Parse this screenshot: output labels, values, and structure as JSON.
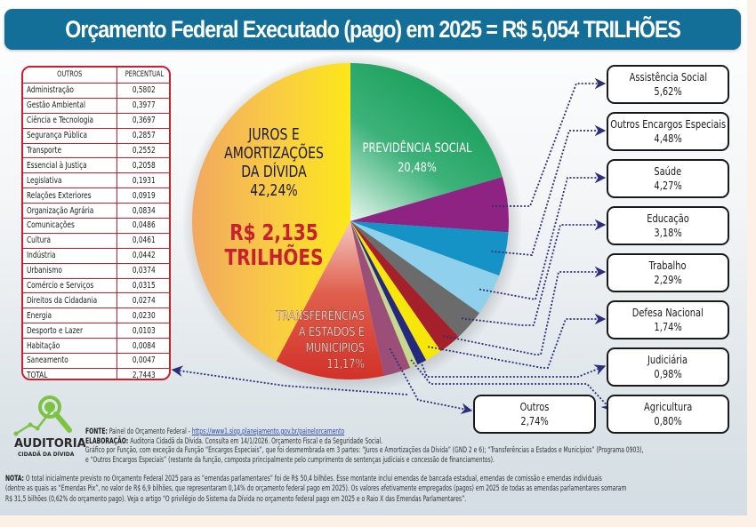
{
  "header": {
    "title": "Orçamento Federal Executado (pago) em 2025 = R$ 5,054 TRILHÕES"
  },
  "outros_table": {
    "headers": [
      "OUTROS",
      "PERCENTUAL"
    ],
    "rows": [
      {
        "label": "Administração",
        "value": "0,5802"
      },
      {
        "label": "Gestão Ambiental",
        "value": "0,3977"
      },
      {
        "label": "Ciência e Tecnologia",
        "value": "0,3697"
      },
      {
        "label": "Segurança Pública",
        "value": "0,2857"
      },
      {
        "label": "Transporte",
        "value": "0,2552"
      },
      {
        "label": "Essencial à Justiça",
        "value": "0,2058"
      },
      {
        "label": "Legislativa",
        "value": "0,1931"
      },
      {
        "label": "Relações Exteriores",
        "value": "0,0919"
      },
      {
        "label": "Organização Agrária",
        "value": "0,0834"
      },
      {
        "label": "Comunicações",
        "value": "0,0486"
      },
      {
        "label": "Cultura",
        "value": "0,0461"
      },
      {
        "label": "Indústria",
        "value": "0,0442"
      },
      {
        "label": "Urbanismo",
        "value": "0,0374"
      },
      {
        "label": "Comércio e Serviços",
        "value": "0,0315"
      },
      {
        "label": "Direitos da Cidadania",
        "value": "0,0274"
      },
      {
        "label": "Energia",
        "value": "0,0230"
      },
      {
        "label": "Desporto e Lazer",
        "value": "0,0103"
      },
      {
        "label": "Habitação",
        "value": "0,0084"
      },
      {
        "label": "Saneamento",
        "value": "0,0047"
      }
    ],
    "total": {
      "label": "TOTAL",
      "value": "2,7443"
    }
  },
  "chart_data": {
    "type": "pie",
    "title": "Orçamento Federal Executado (pago) em 2025 = R$ 5,054 TRILHÕES",
    "unit": "%",
    "start": "12 o'clock, clockwise",
    "slices": [
      {
        "name": "Previdência Social",
        "label": "PREVIDÊNCIA SOCIAL",
        "value": 20.48,
        "display": "20,48%",
        "color": "#13a05a",
        "label_inside": true
      },
      {
        "name": "Assistência Social",
        "label": "Assistência Social",
        "value": 5.62,
        "display": "5,62%",
        "color": "#8e2384"
      },
      {
        "name": "Outros Encargos Especiais",
        "label": "Outros Encargos Especiais",
        "value": 4.48,
        "display": "4,48%",
        "color": "#1592c6"
      },
      {
        "name": "Saúde",
        "label": "Saúde",
        "value": 4.27,
        "display": "4,27%",
        "color": "#8fd0ec"
      },
      {
        "name": "Educação",
        "label": "Educação",
        "value": 3.18,
        "display": "3,18%",
        "color": "#6b6b6b"
      },
      {
        "name": "Trabalho",
        "label": "Trabalho",
        "value": 2.29,
        "display": "2,29%",
        "color": "#a4212b"
      },
      {
        "name": "Defesa Nacional",
        "label": "Defesa Nacional",
        "value": 1.74,
        "display": "1,74%",
        "color": "#f6e60a"
      },
      {
        "name": "Judiciária",
        "label": "Judiciária",
        "value": 0.98,
        "display": "0,98%",
        "color": "#24287e"
      },
      {
        "name": "Agricultura",
        "label": "Agricultura",
        "value": 0.8,
        "display": "0,80%",
        "color": "#c7d98c"
      },
      {
        "name": "Outros",
        "label": "Outros",
        "value": 2.74,
        "display": "2,74%",
        "color": "#9b4f78"
      },
      {
        "name": "Transferências a Estados e Municípios",
        "label": "TRANSFERÊNCIAS A ESTADOS E MUNICÍPIOS",
        "value": 11.17,
        "display": "11,17%",
        "color": "#d63a2c",
        "label_inside": true
      },
      {
        "name": "Juros e Amortizações da Dívida",
        "label": "JUROS E AMORTIZAÇÕES DA DÍVIDA",
        "value": 42.24,
        "display": "42,24%",
        "color": "#f9c93c",
        "label_inside": true,
        "amount": "R$ 2,135 TRILHÕES"
      }
    ],
    "inner_labels": {
      "previdencia": {
        "line1": "PREVIDÊNCIA SOCIAL",
        "line2": "20,48%"
      },
      "transferencias": {
        "lines": [
          "TRANSFERÊNCIAS",
          "A ESTADOS E",
          "MUNICÍPIOS",
          "11,17%"
        ]
      },
      "juros": {
        "lines": [
          "JUROS E",
          "AMORTIZAÇÕES",
          "DA DÍVIDA",
          "42,24%"
        ],
        "amount_lines": [
          "R$ 2,135",
          "TRILHÕES"
        ],
        "amount_color": "#c8202f"
      }
    },
    "leader_color": "#2b2e7a"
  },
  "callouts": [
    {
      "name": "Assistência Social",
      "pct": "5,62%"
    },
    {
      "name": "Outros Encargos Especiais",
      "pct": "4,48%"
    },
    {
      "name": "Saúde",
      "pct": "4,27%"
    },
    {
      "name": "Educação",
      "pct": "3,18%"
    },
    {
      "name": "Trabalho",
      "pct": "2,29%"
    },
    {
      "name": "Defesa Nacional",
      "pct": "1,74%"
    },
    {
      "name": "Judiciária",
      "pct": "0,98%"
    },
    {
      "name": "Agricultura",
      "pct": "0,80%"
    },
    {
      "name": "Outros",
      "pct": "2,74%"
    }
  ],
  "logo": {
    "line1": "AUDITORIA",
    "line2": "CIDADÃ DA DÍVIDA",
    "color": "#7cc243"
  },
  "footer": {
    "fonte_label": "FONTE:",
    "fonte_text": " Painel do Orçamento Federal - ",
    "fonte_link": "https://www1.siop.planejamento.gov.br/painelorcamento",
    "elaboracao_label": "ELABORAÇÃO:",
    "elaboracao_text": " Auditoria Cidadã da Dívida. Consulta em 14/1/2026. Orçamento Fiscal e da Seguridade Social.",
    "line3": "Gráfico por Função, com exceção da Função “Encargos Especiais”, que foi desmembrada em 3 partes: “Juros e Amortizações da Dívida” (GND 2 e 6); “Transferências a Estados e Municípios” (Programa 0903),",
    "line4": "e “Outros Encargos Especiais” (restante da função, composta principalmente pelo cumprimento de sentenças judiciais e concessão de financiamentos).",
    "nota_label": "NOTA:",
    "nota_line1": " O total inicialmente previsto no Orçamento Federal 2025 para as “emendas parlamentares” foi de R$ 50,4 bilhões. Esse montante inclui emendas de bancada estadual, emendas de comissão e emendas individuais",
    "nota_line2": "(dentre as quais as “Emendas Pix”, no valor de R$ 6,9 bilhões, que representaram 0,14% do orçamento federal pago em 2025). Os valores efetivamente empregados (pagos) em 2025 de todas as emendas parlamentares somaram",
    "nota_line3": "R$ 31,5 bilhões (0,62% do orçamento pago). Veja o artigo “O privilégio do Sistema da Dívida no orçamento federal pago em 2025 e o Raio X das Emendas Parlamentares”."
  }
}
